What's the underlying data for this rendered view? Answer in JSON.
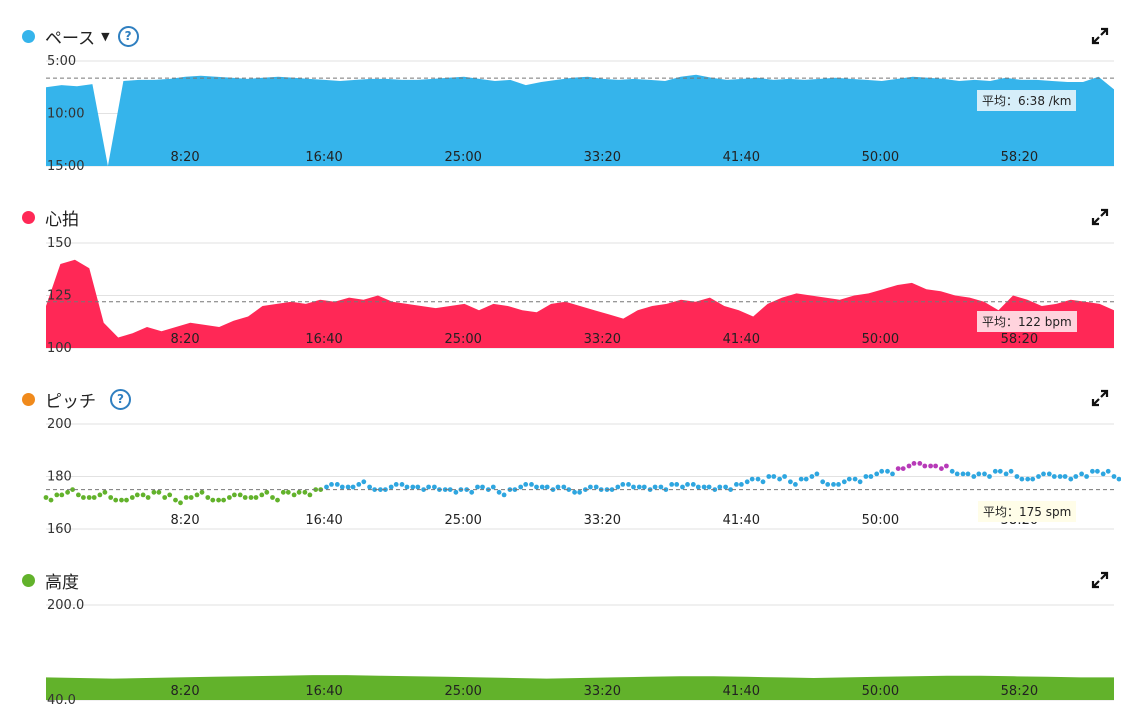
{
  "panels": [
    {
      "key": "pace",
      "title": "ペース",
      "has_caret": true,
      "has_help": true,
      "color": "#35b4eb",
      "avg_label": "平均：6:38 /km",
      "avg_bg": "#d6eef9",
      "chart_data": {
        "type": "area",
        "y_ticks": [
          "5:00",
          "10:00",
          "15:00"
        ],
        "ylim_min_per_km": [
          5,
          15
        ],
        "y_inverted": true,
        "x_tick_labels": [
          "8:20",
          "16:40",
          "25:00",
          "33:20",
          "41:40",
          "50:00",
          "58:20"
        ],
        "xlim_minutes": [
          0,
          64
        ],
        "average_min_per_km": 6.63,
        "values_min_per_km": [
          7.5,
          7.3,
          7.4,
          7.2,
          15,
          6.9,
          6.8,
          6.8,
          6.7,
          6.5,
          6.4,
          6.5,
          6.6,
          6.7,
          6.6,
          6.5,
          6.6,
          6.7,
          6.8,
          6.9,
          6.8,
          6.7,
          6.7,
          6.8,
          6.8,
          6.7,
          6.6,
          6.5,
          6.7,
          6.9,
          6.8,
          7.3,
          7.0,
          6.8,
          6.6,
          6.5,
          6.7,
          6.8,
          6.7,
          6.8,
          6.9,
          6.5,
          6.3,
          6.6,
          6.8,
          6.7,
          6.6,
          6.8,
          6.7,
          6.8,
          6.7,
          6.6,
          6.7,
          6.8,
          6.9,
          6.7,
          6.5,
          6.6,
          6.7,
          6.9,
          6.8,
          6.9,
          6.6,
          6.8,
          6.8,
          6.9,
          7.0,
          7.0,
          6.5,
          7.7
        ]
      }
    },
    {
      "key": "hr",
      "title": "心拍",
      "has_caret": false,
      "has_help": false,
      "color": "#ff2856",
      "avg_label": "平均：122 bpm",
      "avg_bg": "#ffd3dd",
      "chart_data": {
        "type": "area",
        "y_ticks": [
          "150",
          "125",
          "100"
        ],
        "ylim_bpm": [
          100,
          150
        ],
        "x_tick_labels": [
          "8:20",
          "16:40",
          "25:00",
          "33:20",
          "41:40",
          "50:00",
          "58:20"
        ],
        "xlim_minutes": [
          0,
          64
        ],
        "average_bpm": 122,
        "values_bpm": [
          120,
          140,
          142,
          138,
          112,
          105,
          107,
          110,
          108,
          110,
          112,
          111,
          110,
          113,
          115,
          120,
          121,
          122,
          121,
          123,
          122,
          124,
          123,
          125,
          122,
          121,
          120,
          119,
          120,
          121,
          118,
          121,
          120,
          118,
          117,
          121,
          122,
          120,
          118,
          116,
          114,
          118,
          120,
          121,
          123,
          122,
          124,
          120,
          118,
          115,
          121,
          124,
          126,
          125,
          124,
          123,
          125,
          126,
          128,
          130,
          131,
          128,
          127,
          125,
          124,
          122,
          118,
          125,
          123,
          120,
          121,
          123,
          122,
          121,
          118
        ]
      }
    },
    {
      "key": "cadence",
      "title": "ピッチ",
      "has_caret": false,
      "has_help": true,
      "color": "#f08a1c",
      "avg_label": "平均：175 spm",
      "avg_bg": "#fffde8",
      "chart_data": {
        "type": "scatter",
        "y_ticks": [
          "200",
          "180",
          "160"
        ],
        "ylim_spm": [
          160,
          200
        ],
        "x_tick_labels": [
          "8:20",
          "16:40",
          "25:00",
          "33:20",
          "41:40",
          "50:00",
          "58:20"
        ],
        "xlim_minutes": [
          0,
          64
        ],
        "average_spm": 175,
        "low_color": "#62b22b",
        "mid_color": "#2ea6e0",
        "high_color": "#b73ab8",
        "values_spm": [
          172,
          173,
          174,
          173,
          172,
          173,
          172,
          171,
          172,
          173,
          174,
          172,
          171,
          172,
          173,
          172,
          171,
          172,
          173,
          172,
          173,
          172,
          174,
          173,
          174,
          175,
          176,
          177,
          176,
          177,
          176,
          175,
          176,
          177,
          176,
          175,
          176,
          175,
          174,
          175,
          176,
          175,
          174,
          175,
          176,
          177,
          176,
          175,
          176,
          174,
          175,
          176,
          175,
          176,
          177,
          176,
          175,
          176,
          177,
          176,
          177,
          176,
          175,
          176,
          177,
          178,
          179,
          180,
          179,
          178,
          179,
          180,
          178,
          177,
          178,
          179,
          180,
          181,
          182,
          183,
          184,
          185,
          184,
          183,
          182,
          181,
          180,
          181,
          182,
          181,
          180,
          179,
          180,
          181,
          180,
          179,
          181,
          182,
          181,
          180
        ]
      }
    },
    {
      "key": "elev",
      "title": "高度",
      "has_caret": false,
      "has_help": false,
      "color": "#62b22b",
      "avg_label": "",
      "avg_bg": "#ffffff",
      "chart_data": {
        "type": "area",
        "y_ticks": [
          "200.0",
          "40.0"
        ],
        "ylim_m": [
          40,
          200
        ],
        "x_tick_labels": [
          "8:20",
          "16:40",
          "25:00",
          "33:20",
          "41:40",
          "50:00",
          "58:20"
        ],
        "xlim_minutes": [
          0,
          64
        ],
        "values_m": [
          78,
          77,
          76,
          77,
          78,
          79,
          80,
          81,
          82,
          82,
          81,
          80,
          79,
          78,
          77,
          76,
          77,
          78,
          79,
          80,
          80,
          79,
          78,
          77,
          78,
          79,
          80,
          81,
          81,
          80,
          79,
          78,
          78
        ]
      }
    }
  ]
}
